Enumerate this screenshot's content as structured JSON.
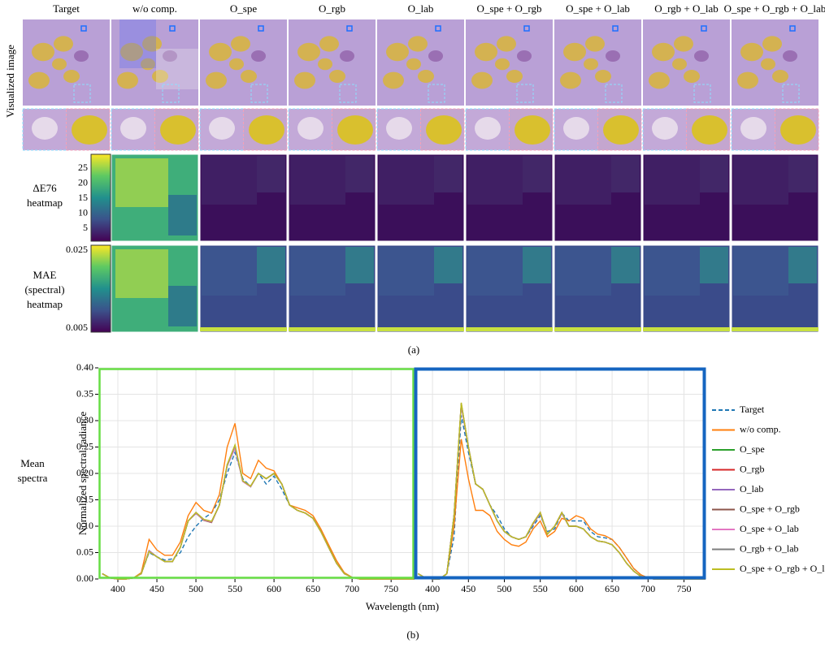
{
  "figure_a": {
    "columns": [
      "Target",
      "w/o comp.",
      "O_spe",
      "O_rgb",
      "O_lab",
      "O_spe + O_rgb",
      "O_spe + O_lab",
      "O_rgb + O_lab",
      "O_spe + O_rgb + O_lab"
    ],
    "row_label_image": "Visualized image",
    "heatmap1_label": [
      "ΔE76",
      "heatmap"
    ],
    "heatmap1_ticks": [
      "25",
      "20",
      "15",
      "10",
      "5"
    ],
    "heatmap2_label": [
      "MAE",
      "(spectral)",
      "heatmap"
    ],
    "heatmap2_ticks": [
      "0.025",
      "0.005"
    ],
    "caption": "(a)"
  },
  "figure_b": {
    "row_label": [
      "Mean",
      "spectra"
    ],
    "caption": "(b)"
  },
  "chart_data": [
    {
      "type": "line",
      "ylabel": "Normalized spectral radiance",
      "xlabel": "Wavelength (nm)",
      "xlim": [
        375,
        780
      ],
      "ylim": [
        0,
        0.4
      ],
      "xticks": [
        400,
        450,
        500,
        550,
        600,
        650,
        700,
        750
      ],
      "yticks": [
        {
          "value": 0,
          "label": "0.00"
        },
        {
          "value": 0.05,
          "label": "0.05"
        },
        {
          "value": 0.1,
          "label": "0.10"
        },
        {
          "value": 0.15,
          "label": "0.15"
        },
        {
          "value": 0.2,
          "label": "0.20"
        },
        {
          "value": 0.25,
          "label": "0.25"
        },
        {
          "value": 0.3,
          "label": "0.30"
        },
        {
          "value": 0.35,
          "label": "0.35"
        },
        {
          "value": 0.4,
          "label": "0.40"
        }
      ],
      "grid": true,
      "frame_color": "#66dd44",
      "x": [
        380,
        390,
        400,
        410,
        420,
        430,
        440,
        450,
        460,
        470,
        480,
        490,
        500,
        510,
        520,
        530,
        540,
        550,
        560,
        570,
        580,
        590,
        600,
        610,
        620,
        630,
        640,
        650,
        660,
        670,
        680,
        690,
        700,
        710,
        720,
        730,
        740,
        750,
        760,
        770,
        780
      ],
      "series": [
        {
          "name": "Target",
          "color": "#1f77b4",
          "style": "dashed",
          "values": [
            0.01,
            0.002,
            0,
            0,
            0.002,
            0.01,
            0.05,
            0.042,
            0.036,
            0.038,
            0.05,
            0.08,
            0.1,
            0.115,
            0.125,
            0.15,
            0.2,
            0.24,
            0.19,
            0.175,
            0.2,
            0.18,
            0.195,
            0.17,
            0.14,
            0.13,
            0.125,
            0.115,
            0.09,
            0.06,
            0.03,
            0.01,
            0.003,
            0,
            0,
            0,
            0,
            0,
            0,
            0,
            0
          ]
        },
        {
          "name": "w/o comp.",
          "color": "#ff7f0e",
          "values": [
            0.01,
            0.002,
            0,
            0,
            0.002,
            0.012,
            0.075,
            0.055,
            0.045,
            0.045,
            0.07,
            0.12,
            0.145,
            0.13,
            0.125,
            0.16,
            0.25,
            0.295,
            0.2,
            0.19,
            0.225,
            0.21,
            0.205,
            0.18,
            0.14,
            0.135,
            0.13,
            0.12,
            0.095,
            0.065,
            0.035,
            0.012,
            0.003,
            0,
            0,
            0,
            0,
            0,
            0,
            0,
            0
          ]
        },
        {
          "name": "O_spe",
          "color": "#2ca02c",
          "values": [
            0.01,
            0.002,
            0,
            0,
            0.002,
            0.01,
            0.053,
            0.042,
            0.033,
            0.033,
            0.06,
            0.11,
            0.125,
            0.112,
            0.108,
            0.14,
            0.215,
            0.25,
            0.185,
            0.175,
            0.2,
            0.19,
            0.2,
            0.18,
            0.14,
            0.13,
            0.125,
            0.115,
            0.09,
            0.06,
            0.03,
            0.01,
            0.003,
            0,
            0,
            0,
            0,
            0,
            0,
            0,
            0
          ]
        },
        {
          "name": "O_rgb",
          "color": "#d62728",
          "values": [
            0.01,
            0.002,
            0,
            0,
            0.002,
            0.01,
            0.052,
            0.042,
            0.033,
            0.033,
            0.06,
            0.11,
            0.126,
            0.112,
            0.108,
            0.14,
            0.216,
            0.252,
            0.185,
            0.175,
            0.2,
            0.19,
            0.2,
            0.18,
            0.14,
            0.13,
            0.125,
            0.115,
            0.09,
            0.06,
            0.03,
            0.01,
            0.003,
            0,
            0,
            0,
            0,
            0,
            0,
            0,
            0
          ]
        },
        {
          "name": "O_lab",
          "color": "#9467bd",
          "values": [
            0.01,
            0.002,
            0,
            0,
            0.002,
            0.01,
            0.054,
            0.042,
            0.033,
            0.033,
            0.06,
            0.11,
            0.124,
            0.112,
            0.108,
            0.14,
            0.214,
            0.248,
            0.185,
            0.175,
            0.2,
            0.19,
            0.2,
            0.18,
            0.14,
            0.13,
            0.125,
            0.115,
            0.09,
            0.06,
            0.03,
            0.01,
            0.003,
            0,
            0,
            0,
            0,
            0,
            0,
            0,
            0
          ]
        },
        {
          "name": "O_spe + O_rgb",
          "color": "#8c564b",
          "values": [
            0.01,
            0.002,
            0,
            0,
            0.002,
            0.01,
            0.053,
            0.042,
            0.033,
            0.033,
            0.06,
            0.11,
            0.125,
            0.111,
            0.107,
            0.14,
            0.215,
            0.251,
            0.185,
            0.175,
            0.2,
            0.19,
            0.2,
            0.18,
            0.14,
            0.13,
            0.125,
            0.115,
            0.09,
            0.06,
            0.03,
            0.01,
            0.003,
            0,
            0,
            0,
            0,
            0,
            0,
            0,
            0
          ]
        },
        {
          "name": "O_spe + O_lab",
          "color": "#e377c2",
          "values": [
            0.01,
            0.002,
            0,
            0,
            0.002,
            0.01,
            0.053,
            0.042,
            0.033,
            0.033,
            0.06,
            0.11,
            0.125,
            0.112,
            0.108,
            0.14,
            0.215,
            0.249,
            0.185,
            0.175,
            0.2,
            0.19,
            0.2,
            0.18,
            0.14,
            0.13,
            0.125,
            0.115,
            0.09,
            0.06,
            0.03,
            0.01,
            0.003,
            0,
            0,
            0,
            0,
            0,
            0,
            0,
            0
          ]
        },
        {
          "name": "O_rgb + O_lab",
          "color": "#7f7f7f",
          "values": [
            0.01,
            0.002,
            0,
            0,
            0.002,
            0.01,
            0.052,
            0.042,
            0.033,
            0.033,
            0.06,
            0.11,
            0.126,
            0.113,
            0.109,
            0.14,
            0.216,
            0.253,
            0.186,
            0.176,
            0.2,
            0.19,
            0.2,
            0.18,
            0.14,
            0.13,
            0.125,
            0.115,
            0.09,
            0.06,
            0.03,
            0.01,
            0.003,
            0,
            0,
            0,
            0,
            0,
            0,
            0,
            0
          ]
        },
        {
          "name": "O_spe + O_rgb + O_lab",
          "color": "#bcbd22",
          "values": [
            0.01,
            0.002,
            0,
            0,
            0.002,
            0.01,
            0.052,
            0.042,
            0.033,
            0.033,
            0.06,
            0.11,
            0.126,
            0.113,
            0.109,
            0.14,
            0.217,
            0.254,
            0.186,
            0.176,
            0.2,
            0.19,
            0.2,
            0.18,
            0.14,
            0.13,
            0.125,
            0.115,
            0.09,
            0.06,
            0.03,
            0.01,
            0.003,
            0,
            0,
            0,
            0,
            0,
            0,
            0,
            0
          ]
        }
      ]
    },
    {
      "type": "line",
      "xlim": [
        375,
        780
      ],
      "ylim": [
        0,
        0.4
      ],
      "xticks": [
        400,
        450,
        500,
        550,
        600,
        650,
        700,
        750
      ],
      "grid": true,
      "frame_color": "#1565c0",
      "series": [
        {
          "values": [
            0.01,
            0.002,
            0,
            0,
            0.01,
            0.08,
            0.31,
            0.24,
            0.18,
            0.17,
            0.14,
            0.12,
            0.095,
            0.08,
            0.075,
            0.08,
            0.1,
            0.12,
            0.09,
            0.095,
            0.125,
            0.11,
            0.11,
            0.11,
            0.09,
            0.08,
            0.078,
            0.075,
            0.06,
            0.04,
            0.02,
            0.008,
            0.002,
            0,
            0,
            0,
            0,
            0,
            0,
            0,
            0
          ]
        },
        {
          "values": [
            0.01,
            0.002,
            0,
            0,
            0.01,
            0.1,
            0.265,
            0.19,
            0.13,
            0.13,
            0.12,
            0.09,
            0.075,
            0.065,
            0.062,
            0.07,
            0.095,
            0.11,
            0.08,
            0.09,
            0.115,
            0.11,
            0.12,
            0.115,
            0.095,
            0.085,
            0.082,
            0.075,
            0.06,
            0.04,
            0.02,
            0.008,
            0.002,
            0,
            0,
            0,
            0,
            0,
            0,
            0,
            0
          ]
        },
        {
          "values": [
            0.01,
            0.002,
            0,
            0,
            0.01,
            0.12,
            0.33,
            0.25,
            0.18,
            0.17,
            0.14,
            0.11,
            0.09,
            0.08,
            0.075,
            0.08,
            0.105,
            0.125,
            0.085,
            0.1,
            0.125,
            0.1,
            0.1,
            0.095,
            0.08,
            0.072,
            0.07,
            0.065,
            0.05,
            0.03,
            0.015,
            0.005,
            0.001,
            0,
            0,
            0,
            0,
            0,
            0,
            0,
            0
          ]
        },
        {
          "values": [
            0.01,
            0.002,
            0,
            0,
            0.01,
            0.12,
            0.332,
            0.25,
            0.18,
            0.17,
            0.14,
            0.11,
            0.09,
            0.08,
            0.075,
            0.08,
            0.106,
            0.126,
            0.085,
            0.1,
            0.126,
            0.1,
            0.1,
            0.095,
            0.08,
            0.072,
            0.07,
            0.065,
            0.05,
            0.03,
            0.015,
            0.005,
            0.001,
            0,
            0,
            0,
            0,
            0,
            0,
            0,
            0
          ]
        },
        {
          "values": [
            0.01,
            0.002,
            0,
            0,
            0.01,
            0.12,
            0.328,
            0.25,
            0.18,
            0.17,
            0.14,
            0.11,
            0.09,
            0.08,
            0.075,
            0.08,
            0.104,
            0.124,
            0.085,
            0.1,
            0.124,
            0.1,
            0.1,
            0.095,
            0.08,
            0.072,
            0.07,
            0.065,
            0.05,
            0.03,
            0.015,
            0.005,
            0.001,
            0,
            0,
            0,
            0,
            0,
            0,
            0,
            0
          ]
        },
        {
          "values": [
            0.01,
            0.002,
            0,
            0,
            0.01,
            0.12,
            0.331,
            0.25,
            0.18,
            0.17,
            0.14,
            0.11,
            0.09,
            0.08,
            0.075,
            0.08,
            0.105,
            0.125,
            0.085,
            0.1,
            0.125,
            0.1,
            0.1,
            0.095,
            0.08,
            0.072,
            0.07,
            0.065,
            0.05,
            0.03,
            0.015,
            0.005,
            0.001,
            0,
            0,
            0,
            0,
            0,
            0,
            0,
            0
          ]
        },
        {
          "values": [
            0.01,
            0.002,
            0,
            0,
            0.01,
            0.12,
            0.329,
            0.25,
            0.18,
            0.17,
            0.14,
            0.11,
            0.09,
            0.08,
            0.075,
            0.08,
            0.105,
            0.125,
            0.085,
            0.1,
            0.125,
            0.1,
            0.1,
            0.095,
            0.08,
            0.072,
            0.07,
            0.065,
            0.05,
            0.03,
            0.015,
            0.005,
            0.001,
            0,
            0,
            0,
            0,
            0,
            0,
            0,
            0
          ]
        },
        {
          "values": [
            0.01,
            0.002,
            0,
            0,
            0.01,
            0.12,
            0.333,
            0.25,
            0.18,
            0.17,
            0.14,
            0.11,
            0.09,
            0.08,
            0.075,
            0.08,
            0.106,
            0.126,
            0.085,
            0.1,
            0.126,
            0.1,
            0.1,
            0.095,
            0.08,
            0.072,
            0.07,
            0.065,
            0.05,
            0.03,
            0.015,
            0.005,
            0.001,
            0,
            0,
            0,
            0,
            0,
            0,
            0,
            0
          ]
        },
        {
          "values": [
            0.01,
            0.002,
            0,
            0,
            0.01,
            0.12,
            0.334,
            0.25,
            0.18,
            0.17,
            0.14,
            0.11,
            0.09,
            0.08,
            0.075,
            0.08,
            0.106,
            0.126,
            0.085,
            0.1,
            0.126,
            0.1,
            0.1,
            0.095,
            0.08,
            0.072,
            0.07,
            0.065,
            0.05,
            0.03,
            0.015,
            0.005,
            0.001,
            0,
            0,
            0,
            0,
            0,
            0,
            0,
            0
          ]
        }
      ]
    }
  ]
}
